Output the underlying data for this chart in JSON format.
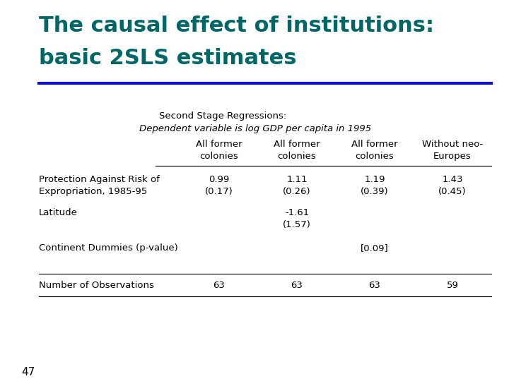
{
  "title_line1": "The causal effect of institutions:",
  "title_line2": "basic 2SLS estimates",
  "title_color": "#006666",
  "rule_color": "#1111CC",
  "background_color": "#FFFFFF",
  "page_number": "47",
  "header_main": "Second Stage Regressions:",
  "header_sub": "Dependent variable is log GDP per capita in 1995",
  "col_headers_line1": [
    "All former",
    "All former",
    "All former",
    "Without neo-"
  ],
  "col_headers_line2": [
    "colonies",
    "colonies",
    "colonies",
    "Europes"
  ],
  "rows": [
    {
      "label_line1": "Protection Against Risk of",
      "label_line2": "Expropriation, 1985-95",
      "values": [
        "0.99",
        "1.11",
        "1.19",
        "1.43"
      ],
      "se": [
        "(0.17)",
        "(0.26)",
        "(0.39)",
        "(0.45)"
      ]
    },
    {
      "label_line1": "Latitude",
      "label_line2": "",
      "values": [
        "",
        "-1.61",
        "",
        ""
      ],
      "se": [
        "",
        "(1.57)",
        "",
        ""
      ]
    },
    {
      "label_line1": "Continent Dummies (p-value)",
      "label_line2": "",
      "values": [
        "",
        "",
        "[0.09]",
        ""
      ],
      "se": [
        "",
        "",
        "",
        ""
      ]
    },
    {
      "label_line1": "Number of Observations",
      "label_line2": "",
      "values": [
        "63",
        "63",
        "63",
        "59"
      ],
      "se": [
        "",
        "",
        "",
        ""
      ]
    }
  ],
  "figsize": [
    7.2,
    5.4
  ],
  "dpi": 100
}
